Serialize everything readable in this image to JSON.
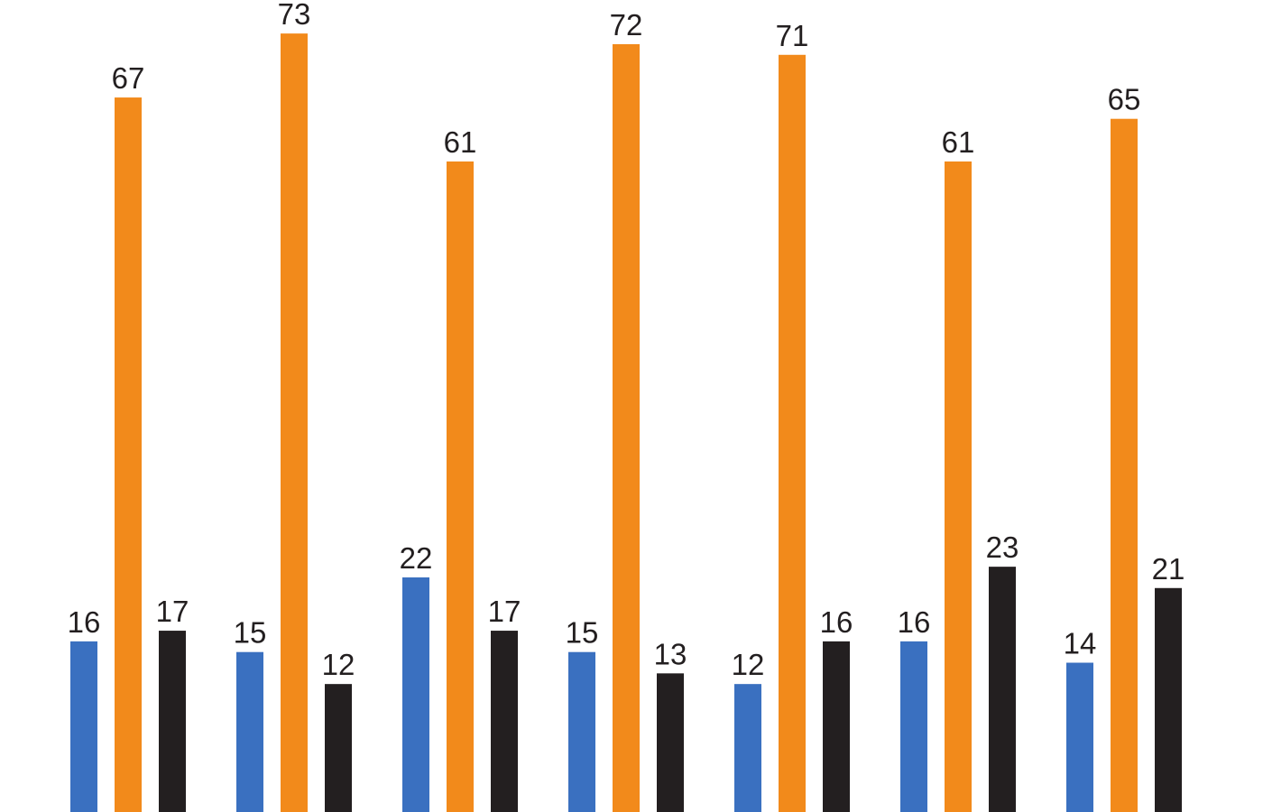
{
  "chart_data": {
    "type": "bar",
    "title": "",
    "xlabel": "",
    "ylabel": "",
    "categories": [
      "",
      "",
      "",
      "",
      "",
      "",
      ""
    ],
    "ylim": [
      0,
      75
    ],
    "grid": false,
    "legend": "none",
    "series": [
      {
        "color": "#3a70c0",
        "values": [
          16,
          15,
          22,
          15,
          12,
          16,
          14
        ]
      },
      {
        "color": "#f28a1b",
        "values": [
          67,
          73,
          61,
          72,
          71,
          61,
          65
        ]
      },
      {
        "color": "#231f20",
        "values": [
          17,
          12,
          17,
          13,
          16,
          23,
          21
        ]
      }
    ]
  }
}
